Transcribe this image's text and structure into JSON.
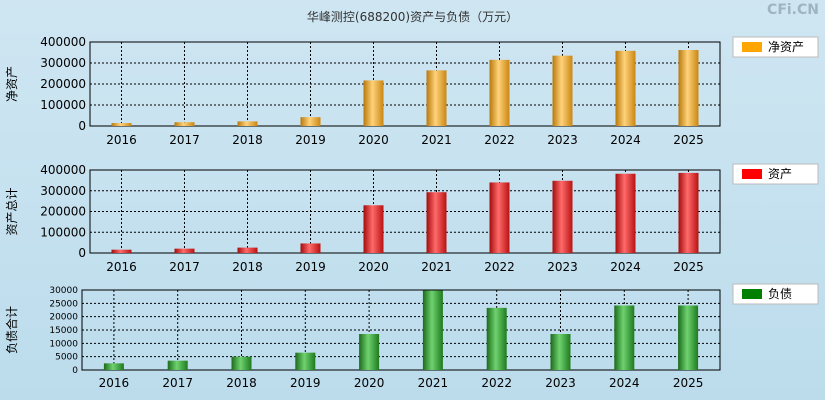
{
  "title": "华峰测控(688200)资产与负债（万元）",
  "watermark": "CFi.CN",
  "chart_data": [
    {
      "type": "bar",
      "ylabel": "净资产",
      "legend": "净资产",
      "legend_color": "#FFA500",
      "categories": [
        "2016",
        "2017",
        "2018",
        "2019",
        "2020",
        "2021",
        "2022",
        "2023",
        "2024",
        "2025"
      ],
      "series": [
        {
          "name": "净资产",
          "values": [
            14000,
            18000,
            22000,
            42000,
            217000,
            265000,
            315000,
            335000,
            358000,
            362000
          ]
        }
      ],
      "ylim": [
        0,
        400000
      ],
      "yticks": [
        "0",
        "100000",
        "200000",
        "300000",
        "400000"
      ],
      "grid": true
    },
    {
      "type": "bar",
      "ylabel": "资产总计",
      "legend": "资产",
      "legend_color": "#FF0000",
      "categories": [
        "2016",
        "2017",
        "2018",
        "2019",
        "2020",
        "2021",
        "2022",
        "2023",
        "2024",
        "2025"
      ],
      "series": [
        {
          "name": "资产",
          "values": [
            16000,
            21000,
            26000,
            46000,
            230000,
            293000,
            340000,
            348000,
            382000,
            386000
          ]
        }
      ],
      "ylim": [
        0,
        400000
      ],
      "yticks": [
        "0",
        "100000",
        "200000",
        "300000",
        "400000"
      ],
      "grid": true
    },
    {
      "type": "bar",
      "ylabel": "负债合计",
      "legend": "负债",
      "legend_color": "#008000",
      "categories": [
        "2016",
        "2017",
        "2018",
        "2019",
        "2020",
        "2021",
        "2022",
        "2023",
        "2024",
        "2025"
      ],
      "series": [
        {
          "name": "负债",
          "values": [
            2500,
            3500,
            5000,
            6500,
            13500,
            29800,
            23300,
            13500,
            24200,
            24200
          ]
        }
      ],
      "ylim": [
        0,
        30000
      ],
      "yticks": [
        "0",
        "5000",
        "10000",
        "15000",
        "20000",
        "25000",
        "30000"
      ],
      "grid": true
    }
  ]
}
